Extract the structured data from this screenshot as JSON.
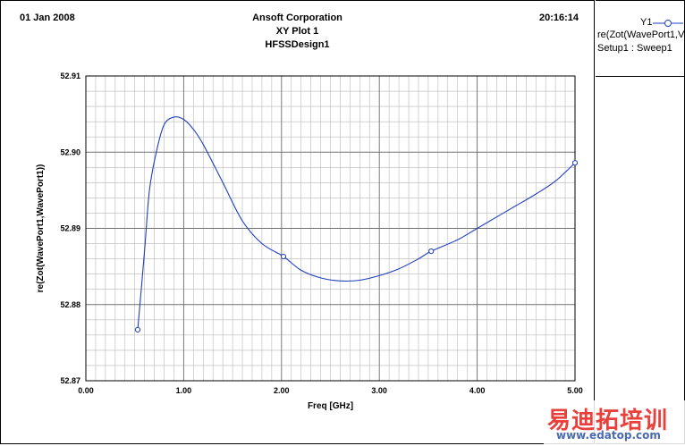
{
  "header": {
    "date": "01 Jan 2008",
    "time": "20:16:14",
    "company": "Ansoft Corporation",
    "plot_title": "XY Plot 1",
    "design": "HFSSDesign1"
  },
  "legend": {
    "trace_name": "Y1",
    "expression": "re(Zot(WavePort1,V",
    "setup": "Setup1 : Sweep1"
  },
  "watermark": {
    "text": "易迪拓培训",
    "url": "www.edatop.com"
  },
  "chart_data": {
    "type": "line",
    "xlabel": "Freq [GHz]",
    "ylabel": "re(Zot(WavePort1,WavePort1))",
    "xlim": [
      0.0,
      5.0
    ],
    "ylim": [
      52.87,
      52.91
    ],
    "x_ticks": [
      "0.00",
      "1.00",
      "2.00",
      "3.00",
      "4.00",
      "5.00"
    ],
    "y_ticks": [
      "52.87",
      "52.88",
      "52.89",
      "52.90",
      "52.91"
    ],
    "x_minor_step": 0.1,
    "y_minor_step": 0.002,
    "grid": true,
    "line_color": "#1f3fbf",
    "series": [
      {
        "name": "Y1",
        "x": [
          0.53,
          0.6,
          0.65,
          0.72,
          0.8,
          0.9,
          1.0,
          1.1,
          1.2,
          1.4,
          1.6,
          1.8,
          2.02,
          2.2,
          2.4,
          2.6,
          2.8,
          3.0,
          3.2,
          3.4,
          3.53,
          3.8,
          4.0,
          4.2,
          4.4,
          4.6,
          4.8,
          5.0
        ],
        "y": [
          52.8767,
          52.887,
          52.895,
          52.9,
          52.9036,
          52.9046,
          52.9043,
          52.903,
          52.901,
          52.896,
          52.891,
          52.888,
          52.8863,
          52.8845,
          52.8835,
          52.8831,
          52.8832,
          52.8838,
          52.8847,
          52.886,
          52.887,
          52.8885,
          52.89,
          52.8915,
          52.893,
          52.8945,
          52.8962,
          52.8986
        ],
        "markers_x": [
          0.53,
          2.02,
          3.53,
          5.0
        ],
        "markers_y": [
          52.8767,
          52.8863,
          52.887,
          52.8986
        ]
      }
    ]
  }
}
